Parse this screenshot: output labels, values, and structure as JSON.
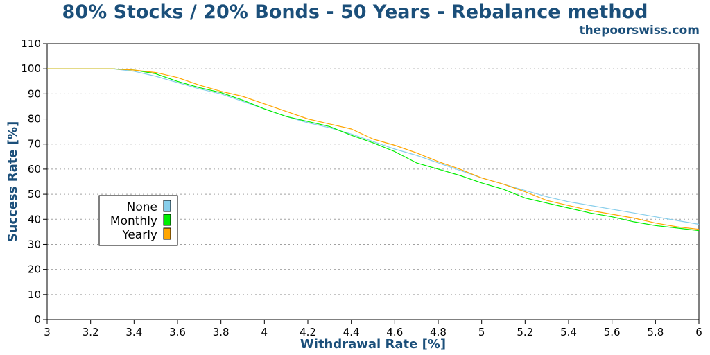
{
  "chart_data": {
    "type": "line",
    "title": "80% Stocks / 20% Bonds - 50 Years - Rebalance method",
    "subtitle": "thepoorswiss.com",
    "xlabel": "Withdrawal Rate [%]",
    "ylabel": "Success Rate [%]",
    "xlim": [
      3,
      6
    ],
    "ylim": [
      0,
      110
    ],
    "xticks": [
      "3",
      "3.2",
      "3.4",
      "3.6",
      "3.8",
      "4",
      "4.2",
      "4.4",
      "4.6",
      "4.8",
      "5",
      "5.2",
      "5.4",
      "5.6",
      "5.8",
      "6"
    ],
    "yticks": [
      "0",
      "10",
      "20",
      "30",
      "40",
      "50",
      "60",
      "70",
      "80",
      "90",
      "100",
      "110"
    ],
    "grid": "horizontal dotted",
    "legend_position": "left-middle",
    "series": [
      {
        "name": "None",
        "color": "#87ceeb",
        "x": [
          3.0,
          3.1,
          3.2,
          3.3,
          3.4,
          3.5,
          3.6,
          3.7,
          3.8,
          3.9,
          4.0,
          4.1,
          4.2,
          4.3,
          4.4,
          4.5,
          4.6,
          4.7,
          4.8,
          4.9,
          5.0,
          5.1,
          5.2,
          5.3,
          5.4,
          5.5,
          5.6,
          5.7,
          5.8,
          5.9,
          6.0
        ],
        "values": [
          100,
          100,
          100,
          100,
          99,
          97,
          94.5,
          92,
          90,
          87,
          84,
          81,
          78.5,
          76.5,
          74,
          71,
          68,
          65.5,
          62.5,
          59.5,
          56.5,
          54,
          51.5,
          49,
          47,
          45.5,
          44,
          42.5,
          41,
          39.5,
          38
        ]
      },
      {
        "name": "Monthly",
        "color": "#00ee00",
        "x": [
          3.0,
          3.1,
          3.2,
          3.3,
          3.4,
          3.5,
          3.6,
          3.7,
          3.8,
          3.9,
          4.0,
          4.1,
          4.2,
          4.3,
          4.4,
          4.5,
          4.6,
          4.7,
          4.8,
          4.9,
          5.0,
          5.1,
          5.2,
          5.3,
          5.4,
          5.5,
          5.6,
          5.7,
          5.8,
          5.9,
          6.0
        ],
        "values": [
          100,
          100,
          100,
          100,
          99.5,
          98,
          95,
          92.5,
          90.5,
          87.5,
          84,
          81,
          79,
          77,
          73.5,
          70.5,
          67,
          62.5,
          60,
          57.5,
          54.5,
          52,
          48.5,
          46.5,
          44.5,
          42.5,
          41,
          39,
          37.5,
          36.5,
          35.5
        ]
      },
      {
        "name": "Yearly",
        "color": "#ffa500",
        "x": [
          3.0,
          3.1,
          3.2,
          3.3,
          3.4,
          3.5,
          3.6,
          3.7,
          3.8,
          3.9,
          4.0,
          4.1,
          4.2,
          4.3,
          4.4,
          4.5,
          4.6,
          4.7,
          4.8,
          4.9,
          5.0,
          5.1,
          5.2,
          5.3,
          5.4,
          5.5,
          5.6,
          5.7,
          5.8,
          5.9,
          6.0
        ],
        "values": [
          100,
          100,
          100,
          100,
          99.5,
          98.5,
          96.5,
          93.5,
          91,
          89,
          86,
          83,
          80,
          78,
          76,
          72,
          69.5,
          66.5,
          63,
          60,
          56.5,
          54,
          51,
          47.5,
          45.5,
          43.5,
          42,
          40.5,
          38.5,
          37,
          36
        ]
      }
    ]
  }
}
